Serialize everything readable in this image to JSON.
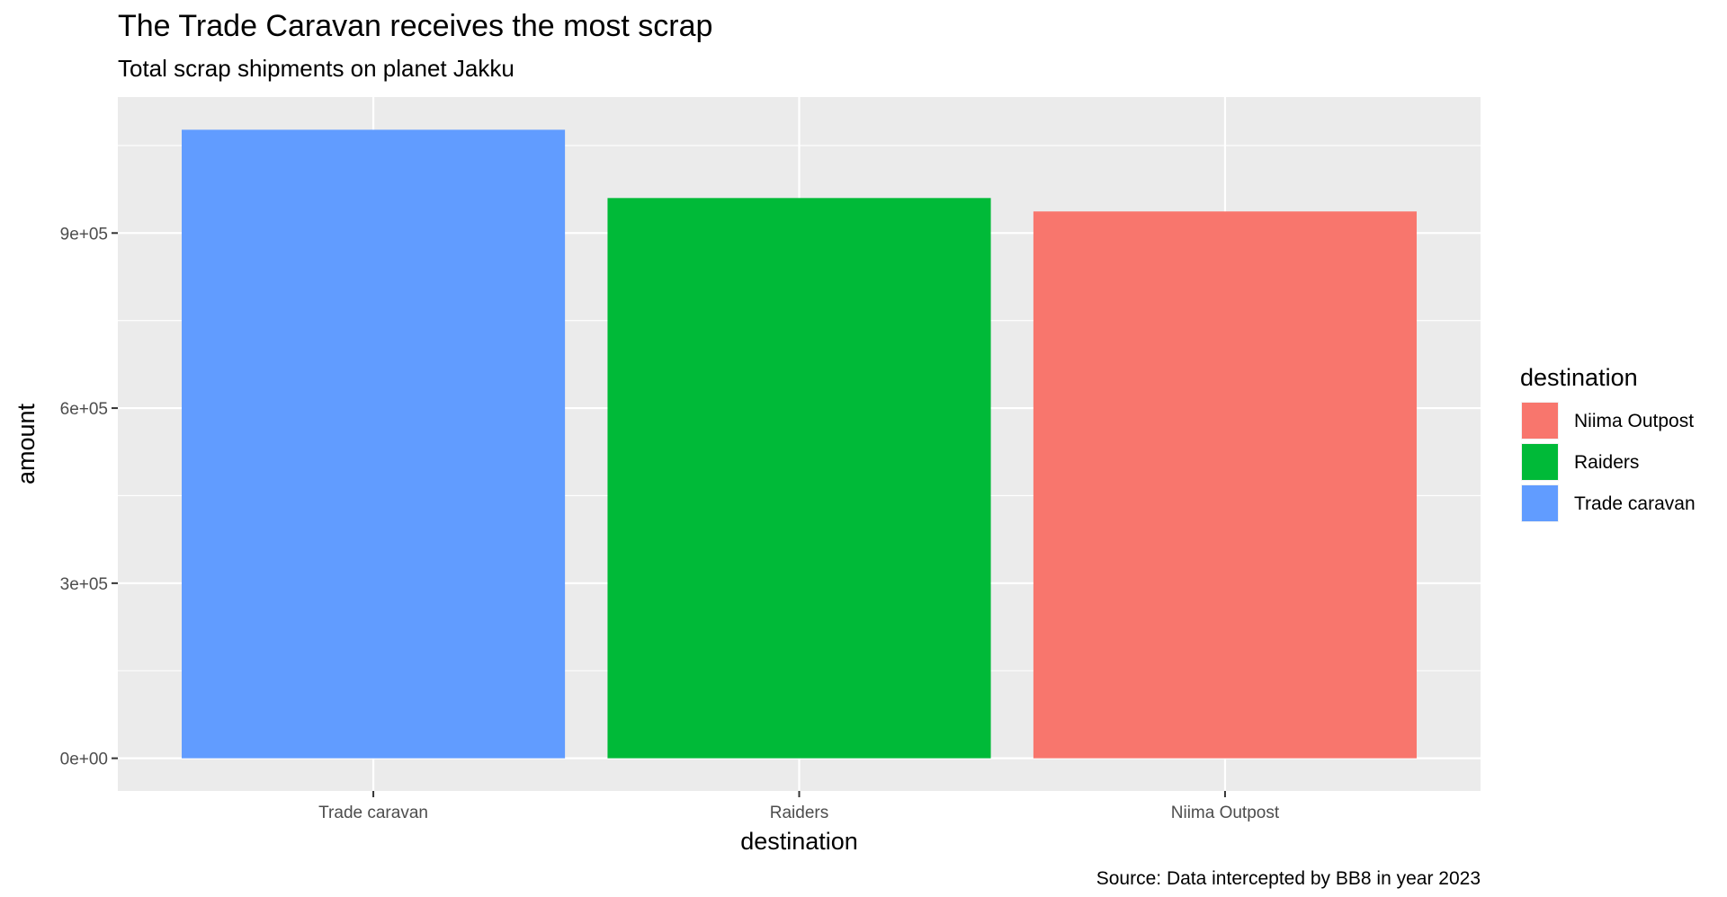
{
  "chart_data": {
    "type": "bar",
    "title": "The Trade Caravan receives the most scrap",
    "subtitle": "Total scrap shipments on planet Jakku",
    "caption": "Source: Data intercepted by BB8 in year 2023",
    "xlabel": "destination",
    "ylabel": "amount",
    "categories": [
      "Trade caravan",
      "Raiders",
      "Niima Outpost"
    ],
    "values": [
      1077000,
      960000,
      937000
    ],
    "bar_colors": [
      "#619CFF",
      "#00BA38",
      "#F8766D"
    ],
    "ylim": [
      -56000,
      1133000
    ],
    "y_ticks": [
      0,
      300000,
      600000,
      900000
    ],
    "y_tick_labels": [
      "0e+00",
      "3e+05",
      "6e+05",
      "9e+05"
    ],
    "y_minor_ticks": [
      150000,
      450000,
      750000,
      1050000
    ],
    "grid": true,
    "panel_background": "#EBEBEB",
    "legend": {
      "title": "destination",
      "placement": "right",
      "entries": [
        {
          "label": "Niima Outpost",
          "color": "#F8766D"
        },
        {
          "label": "Raiders",
          "color": "#00BA38"
        },
        {
          "label": "Trade caravan",
          "color": "#619CFF"
        }
      ]
    }
  }
}
